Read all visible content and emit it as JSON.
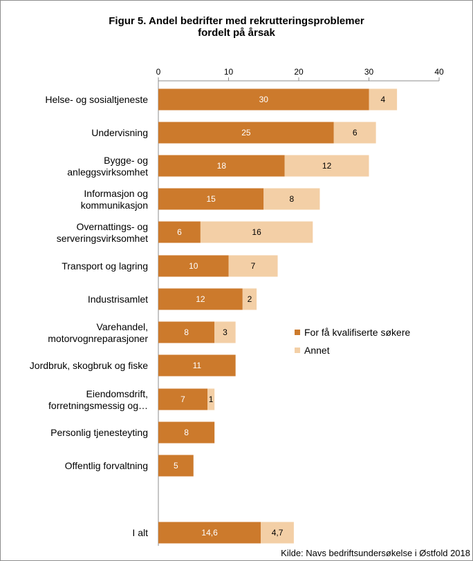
{
  "chart_data": {
    "type": "bar",
    "orientation": "horizontal",
    "stacked": true,
    "title_line1": "Figur 5. Andel bedrifter med rekrutteringsproblemer",
    "title_line2": "fordelt på årsak",
    "xlim": [
      0,
      40
    ],
    "x_ticks": [
      "0",
      "10",
      "20",
      "30",
      "40"
    ],
    "categories": [
      [
        "Helse- og sosialtjeneste"
      ],
      [
        "Undervisning"
      ],
      [
        "Bygge- og",
        "anleggsvirksomhet"
      ],
      [
        "Informasjon og",
        "kommunikasjon"
      ],
      [
        "Overnattings- og",
        "serveringsvirksomhet"
      ],
      [
        "Transport og lagring"
      ],
      [
        "Industrisamlet"
      ],
      [
        "Varehandel,",
        "motorvognreparasjoner"
      ],
      [
        "Jordbruk, skogbruk og fiske"
      ],
      [
        "Eiendomsdrift,",
        "forretningsmessig og…"
      ],
      [
        "Personlig tjenesteyting"
      ],
      [
        "Offentlig forvaltning"
      ],
      [
        "I alt"
      ]
    ],
    "series": [
      {
        "name": "For få kvalifiserte søkere",
        "color": "#cc7a2c",
        "label_color": "#ffffff",
        "values": [
          30,
          25,
          18,
          15,
          6,
          10,
          12,
          8,
          11,
          7,
          8,
          5,
          14.6
        ],
        "labels": [
          "30",
          "25",
          "18",
          "15",
          "6",
          "10",
          "12",
          "8",
          "11",
          "7",
          "8",
          "5",
          "14,6"
        ]
      },
      {
        "name": "Annet",
        "color": "#f3cfa6",
        "label_color": "#000000",
        "values": [
          4,
          6,
          12,
          8,
          16,
          7,
          2,
          3,
          null,
          1,
          null,
          null,
          4.7
        ],
        "labels": [
          "4",
          "6",
          "12",
          "8",
          "16",
          "7",
          "2",
          "3",
          "",
          "1",
          "",
          "",
          "4,7"
        ]
      }
    ],
    "grid": false,
    "legend_position": "right-middle"
  },
  "source": "Kilde: Navs bedriftsundersøkelse i Østfold 2018"
}
